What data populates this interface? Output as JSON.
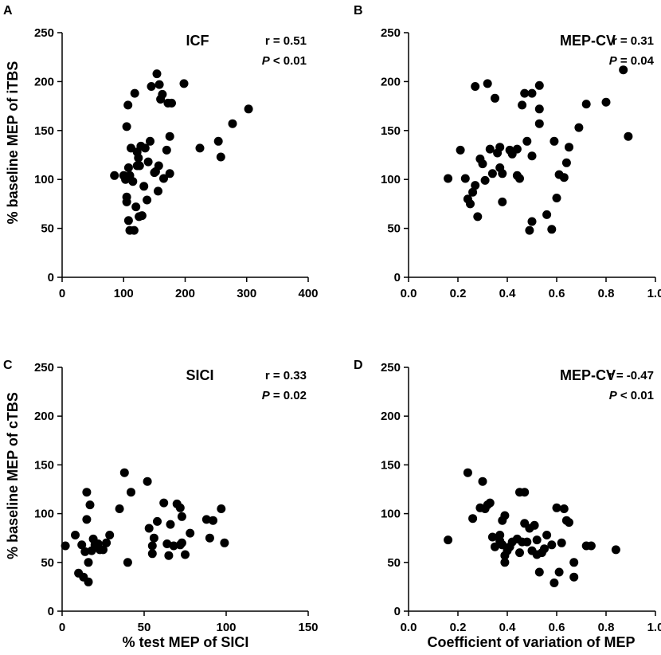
{
  "figure": {
    "ylabels": [
      "% baseline MEP of iTBS",
      "% baseline MEP of cTBS"
    ],
    "xlabels": [
      "% test MEP of SICI",
      "Coefficient of variation of MEP"
    ]
  },
  "colors": {
    "marker": "#000000",
    "axis": "#000000"
  },
  "chart_data": [
    {
      "type": "scatter",
      "panel": "A",
      "title": "ICF",
      "stats": {
        "r": "r = 0.51",
        "p_sym": "P",
        "p_rest": " < 0.01"
      },
      "xlim": [
        0,
        400
      ],
      "ylim": [
        0,
        250
      ],
      "xticks": [
        0,
        100,
        200,
        300,
        400
      ],
      "xtick_labels": [
        "0",
        "100",
        "200",
        "300",
        "400"
      ],
      "yticks": [
        0,
        50,
        100,
        150,
        200,
        250
      ],
      "ytick_labels": [
        "0",
        "50",
        "100",
        "150",
        "200",
        "250"
      ],
      "points": [
        [
          85,
          104
        ],
        [
          100,
          104
        ],
        [
          103,
          100
        ],
        [
          105,
          82
        ],
        [
          105,
          77
        ],
        [
          105,
          154
        ],
        [
          107,
          176
        ],
        [
          108,
          58
        ],
        [
          110,
          48
        ],
        [
          108,
          112
        ],
        [
          110,
          104
        ],
        [
          112,
          132
        ],
        [
          115,
          98
        ],
        [
          117,
          48
        ],
        [
          118,
          188
        ],
        [
          120,
          72
        ],
        [
          122,
          114
        ],
        [
          122,
          128
        ],
        [
          124,
          122
        ],
        [
          125,
          62
        ],
        [
          126,
          114
        ],
        [
          128,
          134
        ],
        [
          130,
          63
        ],
        [
          133,
          93
        ],
        [
          135,
          132
        ],
        [
          138,
          79
        ],
        [
          140,
          118
        ],
        [
          143,
          139
        ],
        [
          145,
          195
        ],
        [
          150,
          107
        ],
        [
          152,
          108
        ],
        [
          154,
          208
        ],
        [
          156,
          88
        ],
        [
          157,
          114
        ],
        [
          158,
          197
        ],
        [
          160,
          182
        ],
        [
          163,
          187
        ],
        [
          165,
          101
        ],
        [
          170,
          130
        ],
        [
          172,
          178
        ],
        [
          175,
          106
        ],
        [
          175,
          144
        ],
        [
          178,
          178
        ],
        [
          198,
          198
        ],
        [
          224,
          132
        ],
        [
          254,
          139
        ],
        [
          258,
          123
        ],
        [
          277,
          157
        ],
        [
          303,
          172
        ]
      ]
    },
    {
      "type": "scatter",
      "panel": "B",
      "title": "MEP-CV",
      "stats": {
        "r": "r = 0.31",
        "p_sym": "P",
        "p_rest": " = 0.04"
      },
      "xlim": [
        0,
        1
      ],
      "ylim": [
        0,
        250
      ],
      "xticks": [
        0,
        0.2,
        0.4,
        0.6,
        0.8,
        1.0
      ],
      "xtick_labels": [
        "0.0",
        "0.2",
        "0.4",
        "0.6",
        "0.8",
        "1.0"
      ],
      "yticks": [
        0,
        50,
        100,
        150,
        200,
        250
      ],
      "ytick_labels": [
        "0",
        "50",
        "100",
        "150",
        "200",
        "250"
      ],
      "points": [
        [
          0.16,
          101
        ],
        [
          0.21,
          130
        ],
        [
          0.23,
          101
        ],
        [
          0.24,
          80
        ],
        [
          0.25,
          75
        ],
        [
          0.26,
          87
        ],
        [
          0.27,
          195
        ],
        [
          0.27,
          94
        ],
        [
          0.28,
          62
        ],
        [
          0.29,
          121
        ],
        [
          0.3,
          116
        ],
        [
          0.31,
          99
        ],
        [
          0.32,
          198
        ],
        [
          0.33,
          131
        ],
        [
          0.34,
          106
        ],
        [
          0.35,
          183
        ],
        [
          0.36,
          127
        ],
        [
          0.37,
          133
        ],
        [
          0.37,
          112
        ],
        [
          0.38,
          106
        ],
        [
          0.38,
          77
        ],
        [
          0.41,
          130
        ],
        [
          0.42,
          126
        ],
        [
          0.44,
          131
        ],
        [
          0.44,
          104
        ],
        [
          0.45,
          101
        ],
        [
          0.46,
          176
        ],
        [
          0.47,
          188
        ],
        [
          0.48,
          139
        ],
        [
          0.49,
          48
        ],
        [
          0.5,
          57
        ],
        [
          0.5,
          188
        ],
        [
          0.5,
          124
        ],
        [
          0.53,
          196
        ],
        [
          0.53,
          172
        ],
        [
          0.53,
          157
        ],
        [
          0.56,
          64
        ],
        [
          0.58,
          49
        ],
        [
          0.59,
          139
        ],
        [
          0.6,
          81
        ],
        [
          0.61,
          105
        ],
        [
          0.63,
          102
        ],
        [
          0.64,
          117
        ],
        [
          0.65,
          133
        ],
        [
          0.69,
          153
        ],
        [
          0.72,
          177
        ],
        [
          0.8,
          179
        ],
        [
          0.87,
          212
        ],
        [
          0.89,
          144
        ]
      ]
    },
    {
      "type": "scatter",
      "panel": "C",
      "title": "SICI",
      "stats": {
        "r": "r = 0.33",
        "p_sym": "P",
        "p_rest": " = 0.02"
      },
      "xlim": [
        0,
        150
      ],
      "ylim": [
        0,
        250
      ],
      "xticks": [
        0,
        50,
        100,
        150
      ],
      "xtick_labels": [
        "0",
        "50",
        "100",
        "150"
      ],
      "yticks": [
        0,
        50,
        100,
        150,
        200,
        250
      ],
      "ytick_labels": [
        "0",
        "50",
        "100",
        "150",
        "200",
        "250"
      ],
      "points": [
        [
          2,
          67
        ],
        [
          8,
          78
        ],
        [
          10,
          39
        ],
        [
          12,
          68
        ],
        [
          13,
          35
        ],
        [
          14,
          61
        ],
        [
          15,
          94
        ],
        [
          15,
          122
        ],
        [
          16,
          30
        ],
        [
          16,
          50
        ],
        [
          17,
          109
        ],
        [
          18,
          62
        ],
        [
          19,
          74
        ],
        [
          20,
          68
        ],
        [
          22,
          69
        ],
        [
          23,
          63
        ],
        [
          25,
          63
        ],
        [
          27,
          70
        ],
        [
          29,
          78
        ],
        [
          35,
          105
        ],
        [
          38,
          142
        ],
        [
          40,
          50
        ],
        [
          42,
          122
        ],
        [
          52,
          133
        ],
        [
          53,
          85
        ],
        [
          55,
          59
        ],
        [
          55,
          67
        ],
        [
          56,
          75
        ],
        [
          58,
          92
        ],
        [
          62,
          111
        ],
        [
          64,
          69
        ],
        [
          65,
          57
        ],
        [
          66,
          89
        ],
        [
          68,
          67
        ],
        [
          70,
          110
        ],
        [
          72,
          106
        ],
        [
          72,
          68
        ],
        [
          73,
          70
        ],
        [
          73,
          97
        ],
        [
          75,
          58
        ],
        [
          78,
          80
        ],
        [
          88,
          94
        ],
        [
          90,
          75
        ],
        [
          92,
          93
        ],
        [
          97,
          105
        ],
        [
          99,
          70
        ]
      ]
    },
    {
      "type": "scatter",
      "panel": "D",
      "title": "MEP-CV",
      "stats": {
        "r": "r = -0.47",
        "p_sym": "P",
        "p_rest": " < 0.01"
      },
      "xlim": [
        0,
        1
      ],
      "ylim": [
        0,
        250
      ],
      "xticks": [
        0,
        0.2,
        0.4,
        0.6,
        0.8,
        1.0
      ],
      "xtick_labels": [
        "0.0",
        "0.2",
        "0.4",
        "0.6",
        "0.8",
        "1.0"
      ],
      "yticks": [
        0,
        50,
        100,
        150,
        200,
        250
      ],
      "ytick_labels": [
        "0",
        "50",
        "100",
        "150",
        "200",
        "250"
      ],
      "points": [
        [
          0.16,
          73
        ],
        [
          0.24,
          142
        ],
        [
          0.26,
          95
        ],
        [
          0.29,
          106
        ],
        [
          0.3,
          133
        ],
        [
          0.31,
          105
        ],
        [
          0.32,
          109
        ],
        [
          0.33,
          111
        ],
        [
          0.34,
          76
        ],
        [
          0.35,
          66
        ],
        [
          0.37,
          78
        ],
        [
          0.37,
          72
        ],
        [
          0.38,
          93
        ],
        [
          0.38,
          68
        ],
        [
          0.39,
          50
        ],
        [
          0.39,
          57
        ],
        [
          0.39,
          98
        ],
        [
          0.4,
          62
        ],
        [
          0.41,
          66
        ],
        [
          0.42,
          71
        ],
        [
          0.44,
          74
        ],
        [
          0.45,
          122
        ],
        [
          0.45,
          60
        ],
        [
          0.46,
          71
        ],
        [
          0.47,
          122
        ],
        [
          0.47,
          90
        ],
        [
          0.48,
          71
        ],
        [
          0.49,
          85
        ],
        [
          0.5,
          62
        ],
        [
          0.51,
          88
        ],
        [
          0.52,
          73
        ],
        [
          0.52,
          58
        ],
        [
          0.53,
          40
        ],
        [
          0.54,
          60
        ],
        [
          0.55,
          64
        ],
        [
          0.56,
          78
        ],
        [
          0.58,
          68
        ],
        [
          0.59,
          29
        ],
        [
          0.6,
          106
        ],
        [
          0.61,
          40
        ],
        [
          0.62,
          70
        ],
        [
          0.63,
          105
        ],
        [
          0.64,
          93
        ],
        [
          0.65,
          91
        ],
        [
          0.67,
          50
        ],
        [
          0.67,
          35
        ],
        [
          0.72,
          67
        ],
        [
          0.74,
          67
        ],
        [
          0.84,
          63
        ]
      ]
    }
  ]
}
